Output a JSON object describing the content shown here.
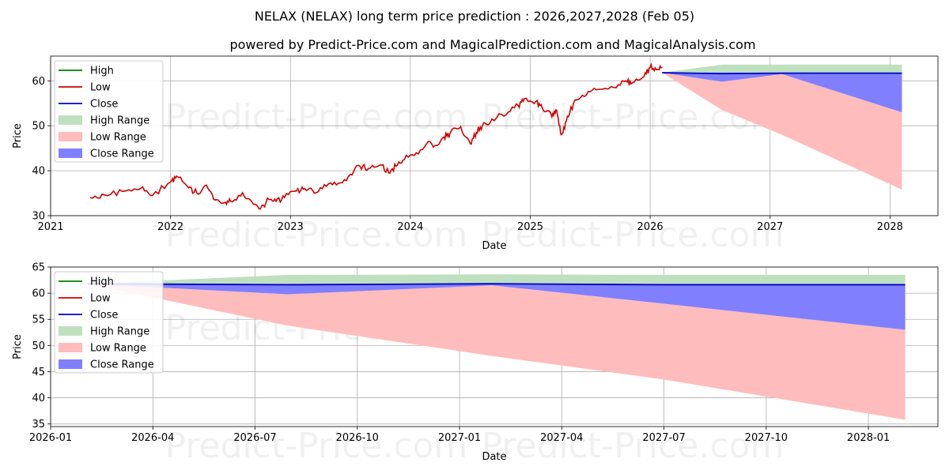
{
  "title": "NELAX (NELAX) long term price prediction : 2026,2027,2028 (Feb 05)",
  "subtitle": "powered by Predict-Price.com and MagicalPrediction.com and MagicalAnalysis.com",
  "watermark": "Predict-Price.com",
  "colors": {
    "high": "#008000",
    "low": "#d00000",
    "close": "#0000cc",
    "high_range": "#bfe0bf",
    "low_range": "#ffbcbc",
    "close_range": "#8080ff"
  },
  "chart_data": [
    {
      "type": "line",
      "title": "NELAX (NELAX) long term price prediction : 2026,2027,2028 (Feb 05)",
      "xlabel": "Date",
      "ylabel": "Price",
      "xlim": [
        2021.0,
        2028.4
      ],
      "ylim": [
        30,
        65.5
      ],
      "xticks": [
        2021,
        2022,
        2023,
        2024,
        2025,
        2026,
        2027,
        2028
      ],
      "xtick_labels": [
        "2021",
        "2022",
        "2023",
        "2024",
        "2025",
        "2026",
        "2027",
        "2028"
      ],
      "yticks": [
        30,
        40,
        50,
        60
      ],
      "yticks_labels": [
        "30",
        "40",
        "50",
        "60"
      ],
      "legend": [
        "High",
        "Low",
        "Close",
        "High Range",
        "Low Range",
        "Close Range"
      ],
      "legend_position": "top-left",
      "history_low": {
        "x": [
          2021.33,
          2021.45,
          2021.6,
          2021.75,
          2021.85,
          2022.0,
          2022.05,
          2022.15,
          2022.22,
          2022.3,
          2022.37,
          2022.45,
          2022.5,
          2022.6,
          2022.68,
          2022.75,
          2022.82,
          2022.88,
          2022.95,
          2023.05,
          2023.12,
          2023.2,
          2023.3,
          2023.4,
          2023.5,
          2023.58,
          2023.65,
          2023.75,
          2023.82,
          2023.88,
          2023.95,
          2024.05,
          2024.15,
          2024.2,
          2024.28,
          2024.33,
          2024.42,
          2024.5,
          2024.55,
          2024.6,
          2024.68,
          2024.8,
          2024.9,
          2024.95,
          2025.05,
          2025.1,
          2025.18,
          2025.22,
          2025.26,
          2025.3,
          2025.36,
          2025.45,
          2025.55,
          2025.7,
          2025.8,
          2025.85,
          2025.95,
          2026.0,
          2026.05,
          2026.1
        ],
        "y": [
          34.0,
          34.6,
          35.4,
          36.0,
          34.5,
          37.5,
          38.8,
          36.2,
          35.0,
          36.8,
          33.5,
          32.9,
          33.2,
          35.1,
          33.0,
          31.5,
          33.6,
          33.2,
          34.0,
          35.5,
          36.0,
          35.0,
          36.5,
          37.2,
          39.2,
          41.0,
          40.5,
          41.3,
          39.5,
          41.0,
          42.5,
          44.0,
          46.5,
          45.5,
          47.5,
          48.2,
          49.8,
          46.0,
          48.5,
          50.0,
          51.5,
          52.5,
          54.5,
          56.0,
          55.5,
          54.0,
          52.0,
          53.5,
          48.0,
          51.0,
          55.0,
          56.5,
          58.0,
          58.5,
          60.0,
          59.5,
          61.0,
          63.0,
          62.5,
          63.0
        ]
      },
      "close_forecast": {
        "x": [
          2026.1,
          2026.6,
          2027.1,
          2028.1
        ],
        "y": [
          61.8,
          61.6,
          61.7,
          61.7
        ]
      },
      "high_range": {
        "x": [
          2026.1,
          2026.6,
          2027.1,
          2028.1
        ],
        "upper": [
          61.8,
          63.6,
          63.6,
          63.6
        ],
        "lower": [
          61.8,
          59.8,
          61.5,
          53.0
        ]
      },
      "close_range": {
        "x": [
          2026.1,
          2026.6,
          2027.1,
          2028.1
        ],
        "upper": [
          61.8,
          61.8,
          61.8,
          61.8
        ],
        "lower": [
          61.8,
          59.8,
          61.5,
          53.0
        ]
      },
      "low_range": {
        "x": [
          2026.1,
          2026.6,
          2027.1,
          2028.1
        ],
        "upper": [
          61.8,
          59.8,
          61.5,
          53.0
        ],
        "lower": [
          61.8,
          53.5,
          48.0,
          35.8
        ]
      }
    },
    {
      "type": "line",
      "title": "",
      "xlabel": "Date",
      "ylabel": "Price",
      "xlim": [
        2026.0,
        2028.17
      ],
      "ylim": [
        34.5,
        65
      ],
      "xticks": [
        2026.0,
        2026.25,
        2026.5,
        2026.75,
        2027.0,
        2027.25,
        2027.5,
        2027.75,
        2028.0
      ],
      "xtick_labels": [
        "2026-01",
        "2026-04",
        "2026-07",
        "2026-10",
        "2027-01",
        "2027-04",
        "2027-07",
        "2027-10",
        "2028-01"
      ],
      "yticks": [
        35,
        40,
        45,
        50,
        55,
        60,
        65
      ],
      "yticks_labels": [
        "35",
        "40",
        "45",
        "50",
        "55",
        "60",
        "65"
      ],
      "legend": [
        "High",
        "Low",
        "Close",
        "High Range",
        "Low Range",
        "Close Range"
      ],
      "legend_position": "top-left",
      "close_forecast": {
        "x": [
          2026.09,
          2026.58,
          2027.08,
          2027.5,
          2028.09
        ],
        "y": [
          61.8,
          61.6,
          61.8,
          61.6,
          61.6
        ]
      },
      "high_range": {
        "x": [
          2026.09,
          2026.58,
          2027.08,
          2027.5,
          2028.09
        ],
        "upper": [
          61.8,
          63.5,
          63.6,
          63.5,
          63.5
        ],
        "lower": [
          61.8,
          59.8,
          61.5,
          58.0,
          53.0
        ]
      },
      "close_range": {
        "x": [
          2026.09,
          2026.58,
          2027.08,
          2027.5,
          2028.09
        ],
        "upper": [
          61.8,
          61.8,
          61.8,
          61.8,
          61.8
        ],
        "lower": [
          61.8,
          59.8,
          61.5,
          58.0,
          53.0
        ]
      },
      "low_range": {
        "x": [
          2026.09,
          2026.58,
          2027.08,
          2027.5,
          2028.09
        ],
        "upper": [
          61.8,
          59.8,
          61.5,
          58.0,
          53.0
        ],
        "lower": [
          61.8,
          53.8,
          48.0,
          43.5,
          35.8
        ]
      }
    }
  ]
}
